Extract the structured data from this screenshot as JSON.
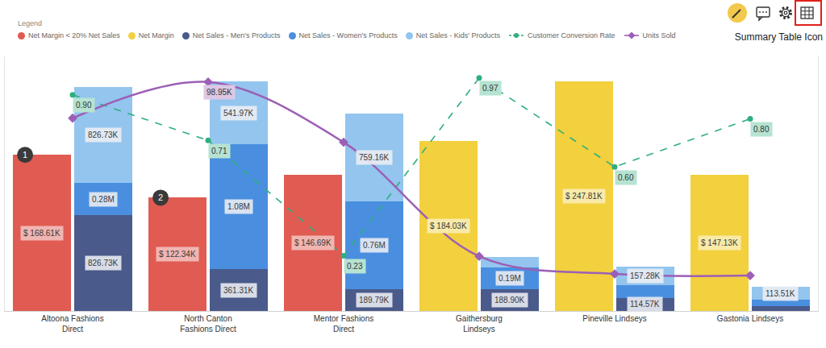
{
  "chart_data": {
    "type": "bar",
    "legend_title": "Legend",
    "categories": [
      "Altoona Fashions Direct",
      "North Canton Fashions Direct",
      "Mentor Fashions Direct",
      "Gaithersburg Lindseys",
      "Pineville Lindseys",
      "Gastonia Lindseys"
    ],
    "ylim": [
      0,
      275000
    ],
    "y2lim": [
      0,
      2200000
    ],
    "y3lim": [
      0,
      1.06
    ],
    "y4lim": [
      0,
      110000
    ],
    "stacked": true,
    "data_labels": true,
    "tick_labels": "x",
    "grid": false,
    "series": [
      {
        "name": "Net Margin < 20% Net Sales",
        "type": "bar",
        "color": "#E05B52",
        "axis": "y",
        "values": [
          168610,
          122340,
          146690,
          null,
          null,
          null
        ],
        "value_labels": [
          "$ 168.61K",
          "$ 122.34K",
          "$ 146.69K",
          null,
          null,
          null
        ]
      },
      {
        "name": "Net Margin",
        "type": "bar",
        "color": "#F2D03E",
        "axis": "y",
        "values": [
          null,
          null,
          null,
          184030,
          247810,
          147130
        ],
        "value_labels": [
          null,
          null,
          null,
          "$ 184.03K",
          "$ 247.81K",
          "$ 147.13K"
        ]
      },
      {
        "name": "Net Sales - Men's Products",
        "type": "bar",
        "color": "#4A5A8A",
        "axis": "y2",
        "values": [
          826730,
          361310,
          189790,
          188900,
          114570,
          40000
        ],
        "value_labels": [
          "826.73K",
          "361.31K",
          "189.79K",
          "188.90K",
          "114.57K",
          null
        ]
      },
      {
        "name": "Net Sales - Women's Products",
        "type": "bar",
        "color": "#4A8FDF",
        "axis": "y2",
        "values": [
          280000,
          1080000,
          760000,
          190000,
          110000,
          55000
        ],
        "value_labels": [
          "0.28M",
          "1.08M",
          "0.76M",
          "0.19M",
          null,
          null
        ]
      },
      {
        "name": "Net Sales - Kids' Products",
        "type": "bar",
        "color": "#93C5EE",
        "axis": "y2",
        "values": [
          826730,
          541970,
          759160,
          85000,
          157280,
          113510
        ],
        "value_labels": [
          "826.73K",
          "541.97K",
          "759.16K",
          null,
          "157.28K",
          "113.51K"
        ]
      },
      {
        "name": "Customer Conversion Rate",
        "type": "line",
        "color": "#2EAF7D",
        "axis": "y3",
        "line_style": "dashed",
        "marker": "circle",
        "values": [
          0.9,
          0.71,
          0.23,
          0.97,
          0.6,
          0.8
        ],
        "value_labels": [
          "0.90",
          "0.71",
          "0.23",
          "0.97",
          "0.60",
          "0.80"
        ]
      },
      {
        "name": "Units Sold",
        "type": "line",
        "color": "#9C5FB5",
        "axis": "y4",
        "line_style": "smooth",
        "marker": "diamond",
        "values": [
          83300,
          98950,
          72900,
          23600,
          16000,
          15300
        ],
        "value_labels": [
          null,
          "98.95K",
          null,
          null,
          null,
          null
        ]
      }
    ],
    "annotations": [
      {
        "text": "1",
        "category": "Altoona Fashions Direct"
      },
      {
        "text": "2",
        "category": "North Canton Fashions Direct"
      },
      {
        "text": "Summary Table Icon"
      }
    ]
  }
}
